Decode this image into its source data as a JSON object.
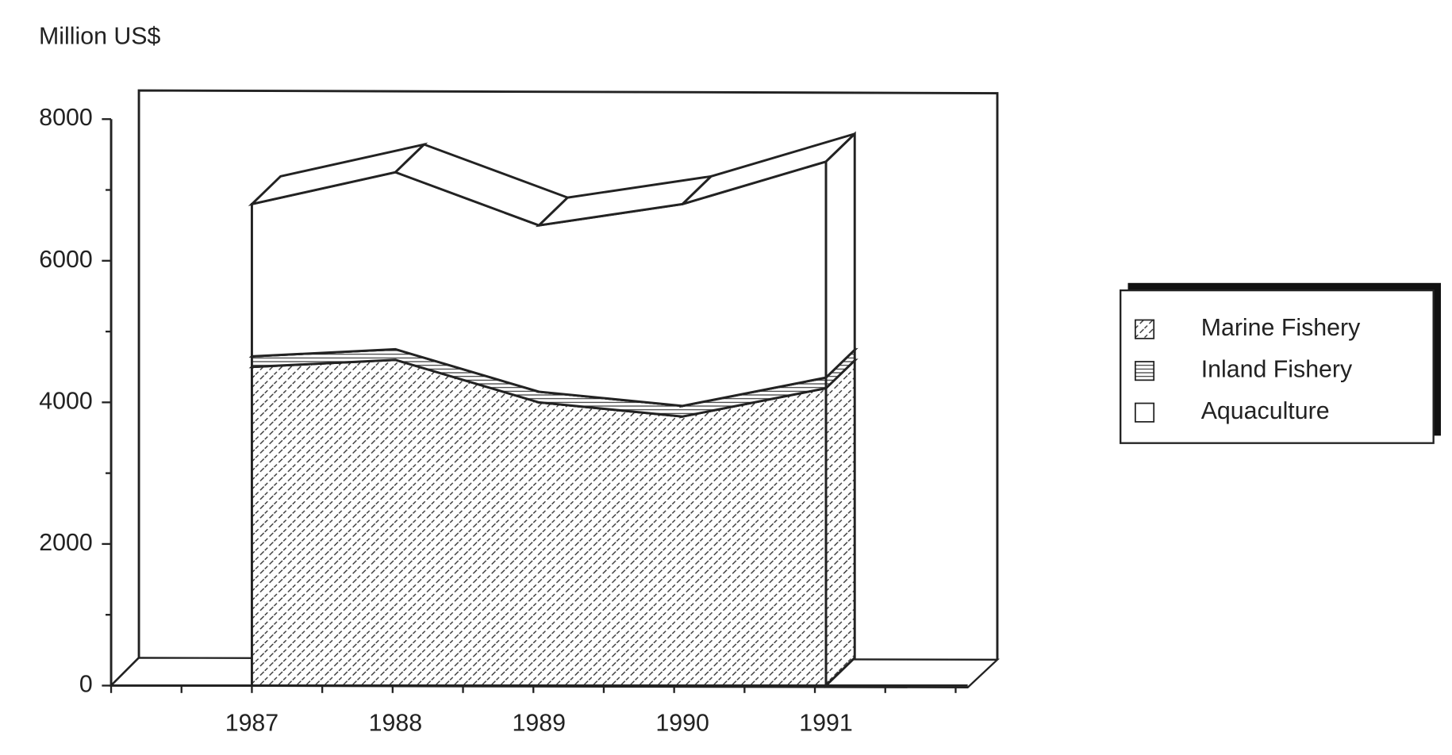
{
  "chart_data": {
    "type": "area3d",
    "stacked": true,
    "ylabel": "Million US$",
    "categories": [
      "1987",
      "1988",
      "1989",
      "1990",
      "1991"
    ],
    "series": [
      {
        "name": "Marine Fishery",
        "color": "#ffffff",
        "pattern": "dashes",
        "values": [
          4500,
          4600,
          4000,
          3800,
          4200
        ]
      },
      {
        "name": "Inland Fishery",
        "color": "#ffffff",
        "pattern": "horizontal",
        "values": [
          150,
          150,
          150,
          150,
          150
        ]
      },
      {
        "name": "Aquaculture",
        "color": "#ffffff",
        "pattern": "none",
        "values": [
          2150,
          2500,
          2350,
          2850,
          3050
        ]
      }
    ],
    "ylim": [
      0,
      8000
    ],
    "yticks": [
      0,
      2000,
      4000,
      6000,
      8000
    ],
    "legend": "right"
  }
}
